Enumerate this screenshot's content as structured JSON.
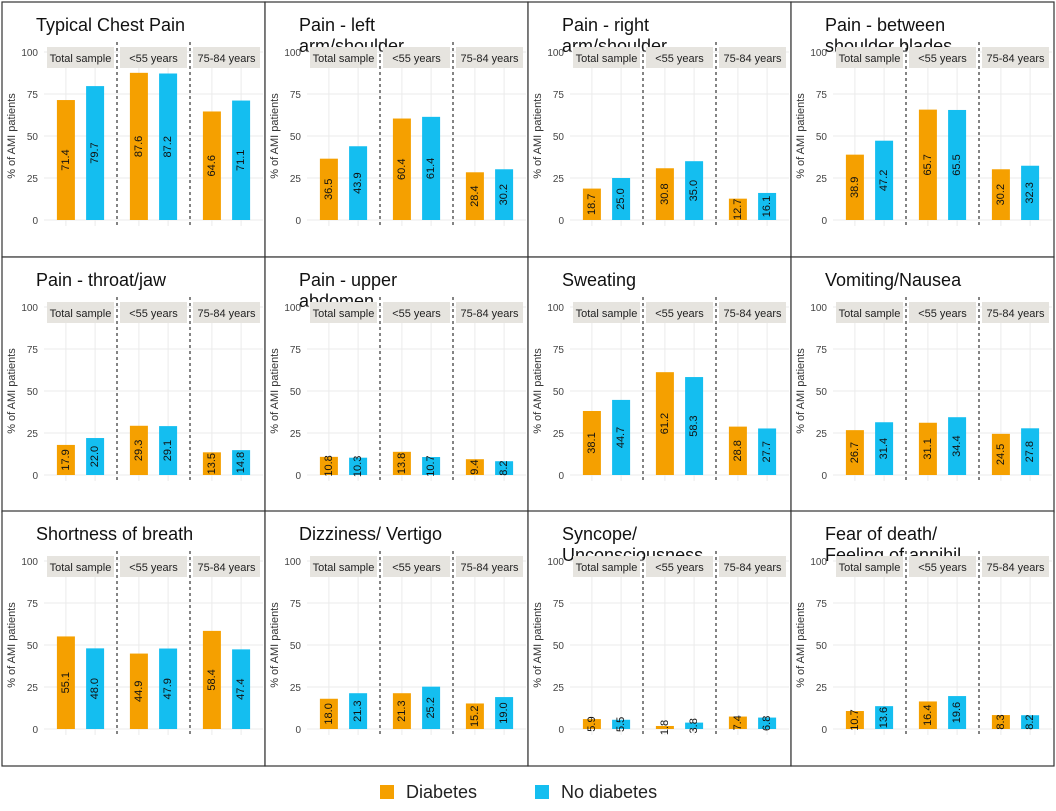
{
  "colors": {
    "diabetes": "#F5A000",
    "no_diabetes": "#14BEF0",
    "strip": "#E6E4DF",
    "grid": "#EBEBEB",
    "border": "#333333"
  },
  "legend": {
    "diabetes": "Diabetes",
    "no_diabetes": "No diabetes"
  },
  "chart_data": {
    "type": "bar",
    "ylabel": "% of AMI patients",
    "ylim": [
      0,
      100
    ],
    "yticks": [
      "0",
      "25",
      "50",
      "75",
      "100"
    ],
    "groups": [
      "Total sample",
      "<55 years",
      "75-84 years"
    ],
    "series_names": [
      "Diabetes",
      "No diabetes"
    ],
    "panels": [
      {
        "title": [
          "Typical Chest Pain"
        ],
        "diabetes": [
          71.4,
          87.6,
          64.6
        ],
        "no_diabetes": [
          79.7,
          87.2,
          71.1
        ],
        "labels_diabetes": [
          "71.4",
          "87.6",
          "64.6"
        ],
        "labels_no_diabetes": [
          "79.7",
          "87.2",
          "71.1"
        ]
      },
      {
        "title": [
          "Pain - left",
          "arm/shoulder"
        ],
        "diabetes": [
          36.5,
          60.4,
          28.4
        ],
        "no_diabetes": [
          43.9,
          61.4,
          30.2
        ],
        "labels_diabetes": [
          "36.5",
          "60.4",
          "28.4"
        ],
        "labels_no_diabetes": [
          "43.9",
          "61.4",
          "30.2"
        ]
      },
      {
        "title": [
          "Pain - right",
          "arm/shoulder"
        ],
        "diabetes": [
          18.7,
          30.8,
          12.7
        ],
        "no_diabetes": [
          25.0,
          35.0,
          16.1
        ],
        "labels_diabetes": [
          "18.7",
          "30.8",
          "12.7"
        ],
        "labels_no_diabetes": [
          "25.0",
          "35.0",
          "16.1"
        ]
      },
      {
        "title": [
          "Pain - between",
          "shoulder blades"
        ],
        "diabetes": [
          38.9,
          65.7,
          30.2
        ],
        "no_diabetes": [
          47.2,
          65.5,
          32.3
        ],
        "labels_diabetes": [
          "38.9",
          "65.7",
          "30.2"
        ],
        "labels_no_diabetes": [
          "47.2",
          "65.5",
          "32.3"
        ]
      },
      {
        "title": [
          "Pain - throat/jaw"
        ],
        "diabetes": [
          17.9,
          29.3,
          13.5
        ],
        "no_diabetes": [
          22.0,
          29.1,
          14.8
        ],
        "labels_diabetes": [
          "17.9",
          "29.3",
          "13.5"
        ],
        "labels_no_diabetes": [
          "22.0",
          "29.1",
          "14.8"
        ]
      },
      {
        "title": [
          "Pain - upper",
          "abdomen"
        ],
        "diabetes": [
          10.8,
          13.8,
          9.4
        ],
        "no_diabetes": [
          10.3,
          10.7,
          8.2
        ],
        "labels_diabetes": [
          "10.8",
          "13.8",
          "9.4"
        ],
        "labels_no_diabetes": [
          "10.3",
          "10.7",
          "8.2"
        ]
      },
      {
        "title": [
          "Sweating"
        ],
        "diabetes": [
          38.1,
          61.2,
          28.8
        ],
        "no_diabetes": [
          44.7,
          58.3,
          27.7
        ],
        "labels_diabetes": [
          "38.1",
          "61.2",
          "28.8"
        ],
        "labels_no_diabetes": [
          "44.7",
          "58.3",
          "27.7"
        ]
      },
      {
        "title": [
          "Vomiting/Nausea"
        ],
        "diabetes": [
          26.7,
          31.1,
          24.5
        ],
        "no_diabetes": [
          31.4,
          34.4,
          27.8
        ],
        "labels_diabetes": [
          "26.7",
          "31.1",
          "24.5"
        ],
        "labels_no_diabetes": [
          "31.4",
          "34.4",
          "27.8"
        ]
      },
      {
        "title": [
          "Shortness of breath"
        ],
        "diabetes": [
          55.1,
          44.9,
          58.4
        ],
        "no_diabetes": [
          48.0,
          47.9,
          47.4
        ],
        "labels_diabetes": [
          "55.1",
          "44.9",
          "58.4"
        ],
        "labels_no_diabetes": [
          "48.0",
          "47.9",
          "47.4"
        ]
      },
      {
        "title": [
          "Dizziness/ Vertigo"
        ],
        "diabetes": [
          18.0,
          21.3,
          15.2
        ],
        "no_diabetes": [
          21.3,
          25.2,
          19.0
        ],
        "labels_diabetes": [
          "18.0",
          "21.3",
          "15.2"
        ],
        "labels_no_diabetes": [
          "21.3",
          "25.2",
          "19.0"
        ]
      },
      {
        "title": [
          "Syncope/",
          "Unconsciousness"
        ],
        "diabetes": [
          5.9,
          1.8,
          7.4
        ],
        "no_diabetes": [
          5.5,
          3.8,
          6.8
        ],
        "labels_diabetes": [
          "5.9",
          "1.8",
          "7.4"
        ],
        "labels_no_diabetes": [
          "5.5",
          "3.8",
          "6.8"
        ]
      },
      {
        "title": [
          "Fear of death/",
          "Feeling of annihil."
        ],
        "diabetes": [
          10.7,
          16.4,
          8.3
        ],
        "no_diabetes": [
          13.6,
          19.6,
          8.2
        ],
        "labels_diabetes": [
          "10.7",
          "16.4",
          "8.3"
        ],
        "labels_no_diabetes": [
          "13.6",
          "19.6",
          "8.2"
        ]
      }
    ]
  }
}
